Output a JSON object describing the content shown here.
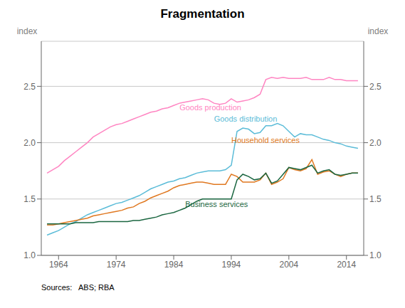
{
  "chart_data": {
    "type": "line",
    "title": "Fragmentation",
    "ylabel": "index",
    "y2label": "index",
    "source": "Sources:   ABS; RBA",
    "xlim": [
      1961,
      2017
    ],
    "xticks": [
      1964,
      1974,
      1984,
      1994,
      2004,
      2014
    ],
    "ylim": [
      1.0,
      2.9
    ],
    "yticks": [
      {
        "value": 1.0,
        "label": "1.0"
      },
      1.5,
      {
        "value": 2.0,
        "label": "2.0"
      },
      2.5
    ],
    "y2lim": [
      1.0,
      2.9
    ],
    "y2ticks": [
      {
        "value": 1.0,
        "label": "1.0"
      },
      1.5,
      {
        "value": 2.0,
        "label": "2.0"
      },
      2.5
    ],
    "grid": true,
    "x": [
      1962,
      1963,
      1964,
      1965,
      1966,
      1967,
      1968,
      1969,
      1970,
      1971,
      1972,
      1973,
      1974,
      1975,
      1976,
      1977,
      1978,
      1979,
      1980,
      1981,
      1982,
      1983,
      1984,
      1985,
      1986,
      1987,
      1988,
      1989,
      1990,
      1991,
      1992,
      1993,
      1994,
      1995,
      1996,
      1997,
      1998,
      1999,
      2000,
      2001,
      2002,
      2003,
      2004,
      2005,
      2006,
      2007,
      2008,
      2009,
      2010,
      2011,
      2012,
      2013,
      2014,
      2015,
      2016
    ],
    "series": [
      {
        "name": "Goods production",
        "color": "#ff85c2",
        "values": [
          1.73,
          1.76,
          1.79,
          1.84,
          1.88,
          1.92,
          1.96,
          2.0,
          2.05,
          2.08,
          2.11,
          2.14,
          2.16,
          2.17,
          2.19,
          2.21,
          2.23,
          2.25,
          2.27,
          2.28,
          2.3,
          2.31,
          2.33,
          2.35,
          2.36,
          2.37,
          2.38,
          2.39,
          2.38,
          2.35,
          2.34,
          2.35,
          2.39,
          2.36,
          2.37,
          2.38,
          2.4,
          2.43,
          2.56,
          2.58,
          2.57,
          2.58,
          2.57,
          2.57,
          2.57,
          2.58,
          2.56,
          2.56,
          2.56,
          2.58,
          2.56,
          2.56,
          2.55,
          2.55,
          2.55
        ]
      },
      {
        "name": "Goods distribution",
        "color": "#5bbcd8",
        "values": [
          1.18,
          1.2,
          1.22,
          1.25,
          1.28,
          1.3,
          1.33,
          1.36,
          1.38,
          1.4,
          1.42,
          1.44,
          1.46,
          1.47,
          1.49,
          1.51,
          1.53,
          1.56,
          1.59,
          1.61,
          1.63,
          1.65,
          1.66,
          1.68,
          1.69,
          1.71,
          1.73,
          1.74,
          1.75,
          1.75,
          1.75,
          1.76,
          1.8,
          2.1,
          2.13,
          2.12,
          2.08,
          2.09,
          2.15,
          2.15,
          2.17,
          2.15,
          2.1,
          2.05,
          2.08,
          2.07,
          2.07,
          2.05,
          2.03,
          2.02,
          2.0,
          1.99,
          1.97,
          1.96,
          1.95
        ]
      },
      {
        "name": "Household services",
        "color": "#e07820",
        "values": [
          1.27,
          1.27,
          1.28,
          1.29,
          1.3,
          1.31,
          1.32,
          1.33,
          1.35,
          1.36,
          1.37,
          1.38,
          1.39,
          1.4,
          1.42,
          1.43,
          1.46,
          1.48,
          1.51,
          1.53,
          1.55,
          1.57,
          1.6,
          1.62,
          1.63,
          1.64,
          1.65,
          1.65,
          1.64,
          1.63,
          1.63,
          1.63,
          1.72,
          1.7,
          1.65,
          1.65,
          1.65,
          1.67,
          1.73,
          1.63,
          1.65,
          1.68,
          1.78,
          1.76,
          1.75,
          1.77,
          1.85,
          1.72,
          1.74,
          1.75,
          1.72,
          1.7,
          1.72,
          1.73,
          1.73
        ]
      },
      {
        "name": "Business services",
        "color": "#1a6640",
        "values": [
          1.28,
          1.28,
          1.28,
          1.28,
          1.28,
          1.29,
          1.29,
          1.29,
          1.29,
          1.3,
          1.3,
          1.3,
          1.3,
          1.3,
          1.3,
          1.31,
          1.31,
          1.32,
          1.33,
          1.34,
          1.36,
          1.37,
          1.38,
          1.4,
          1.42,
          1.45,
          1.48,
          1.5,
          1.5,
          1.5,
          1.5,
          1.5,
          1.5,
          1.67,
          1.72,
          1.7,
          1.67,
          1.68,
          1.73,
          1.64,
          1.66,
          1.72,
          1.78,
          1.77,
          1.76,
          1.78,
          1.8,
          1.73,
          1.75,
          1.76,
          1.72,
          1.71,
          1.72,
          1.73,
          1.73
        ]
      }
    ],
    "annotations": [
      {
        "text": "Goods production",
        "x": 1985,
        "y": 2.27,
        "color": "#ff85c2"
      },
      {
        "text": "Goods distribution",
        "x": 1991,
        "y": 2.17,
        "color": "#5bbcd8"
      },
      {
        "text": "Household services",
        "x": 1994,
        "y": 1.98,
        "color": "#e07820"
      },
      {
        "text": "Business services",
        "x": 1986,
        "y": 1.41,
        "color": "#1a6640"
      }
    ]
  }
}
